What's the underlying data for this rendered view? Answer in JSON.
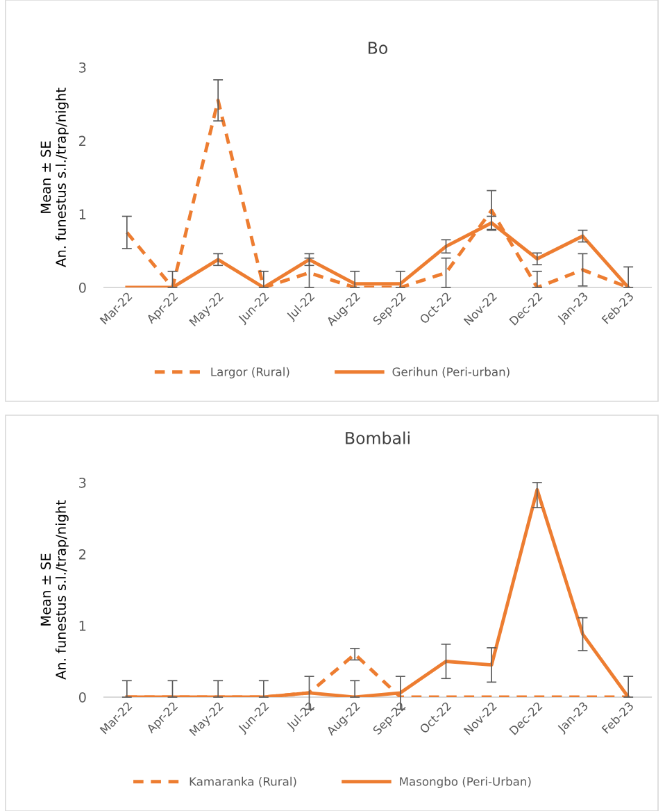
{
  "chart_data": [
    {
      "type": "line",
      "title": "Bo",
      "ylabel": "Mean ± SE\nAn. funestus s.l./trap/night",
      "categories": [
        "Mar-22",
        "Apr-22",
        "May-22",
        "Jun-22",
        "Jul-22",
        "Aug-22",
        "Sep-22",
        "Oct-22",
        "Nov-22",
        "Dec-22",
        "Jan-23",
        "Feb-23"
      ],
      "ylim": [
        0,
        3
      ],
      "yticks": [
        0,
        1,
        2,
        3
      ],
      "grid": false,
      "legend": "bottom",
      "marker": "none",
      "series": [
        {
          "name": "Largor (Rural)",
          "color": "#ed7d31",
          "line_style": "dashed",
          "values": [
            0.75,
            0,
            2.55,
            0,
            0.2,
            0,
            0,
            0.2,
            1.05,
            0,
            0.24,
            0
          ],
          "errors": [
            0.22,
            [
              0,
              0.22
            ],
            0.28,
            [
              0,
              0.22
            ],
            0.2,
            [
              0,
              0.22
            ],
            [
              0,
              0.22
            ],
            0.2,
            0.27,
            [
              0,
              0.22
            ],
            0.22,
            [
              0,
              0.28
            ]
          ]
        },
        {
          "name": "Gerihun (Peri-urban)",
          "color": "#ed7d31",
          "line_style": "solid",
          "values": [
            0,
            0,
            0.38,
            0,
            0.38,
            0.05,
            0.05,
            0.56,
            0.88,
            0.39,
            0.7,
            0
          ],
          "errors": [
            null,
            null,
            0.08,
            null,
            0.08,
            null,
            null,
            0.09,
            0.09,
            0.08,
            0.08,
            null
          ]
        }
      ]
    },
    {
      "type": "line",
      "title": "Bombali",
      "ylabel": "Mean ± SE\nAn. funestus s.l./trap/night",
      "categories": [
        "Mar-22",
        "Apr-22",
        "May-22",
        "Jun-22",
        "Jul-22",
        "Aug-22",
        "Sep-22",
        "Oct-22",
        "Nov-22",
        "Dec-22",
        "Jan-23",
        "Feb-23"
      ],
      "ylim": [
        0,
        3
      ],
      "yticks": [
        0,
        1,
        2,
        3
      ],
      "grid": false,
      "legend": "bottom",
      "marker": "none",
      "series": [
        {
          "name": "Kamaranka (Rural)",
          "color": "#ed7d31",
          "line_style": "dashed",
          "values": [
            0,
            0,
            0,
            0,
            0.06,
            0.6,
            0,
            0,
            0,
            0,
            0,
            0
          ],
          "errors": [
            [
              0,
              0.23
            ],
            [
              0,
              0.23
            ],
            [
              0,
              0.23
            ],
            [
              0,
              0.23
            ],
            0.23,
            0.08,
            null,
            null,
            null,
            null,
            null,
            null
          ]
        },
        {
          "name": "Masongbo (Peri-Urban)",
          "color": "#ed7d31",
          "line_style": "solid",
          "values": [
            0,
            0,
            0,
            0,
            0.06,
            0,
            0.06,
            0.5,
            0.45,
            2.9,
            0.88,
            0
          ],
          "errors": [
            null,
            null,
            null,
            null,
            null,
            [
              0,
              0.23
            ],
            0.23,
            0.24,
            0.24,
            [
              2.65,
              3.0
            ],
            0.23,
            [
              0,
              0.29
            ]
          ]
        }
      ]
    }
  ]
}
